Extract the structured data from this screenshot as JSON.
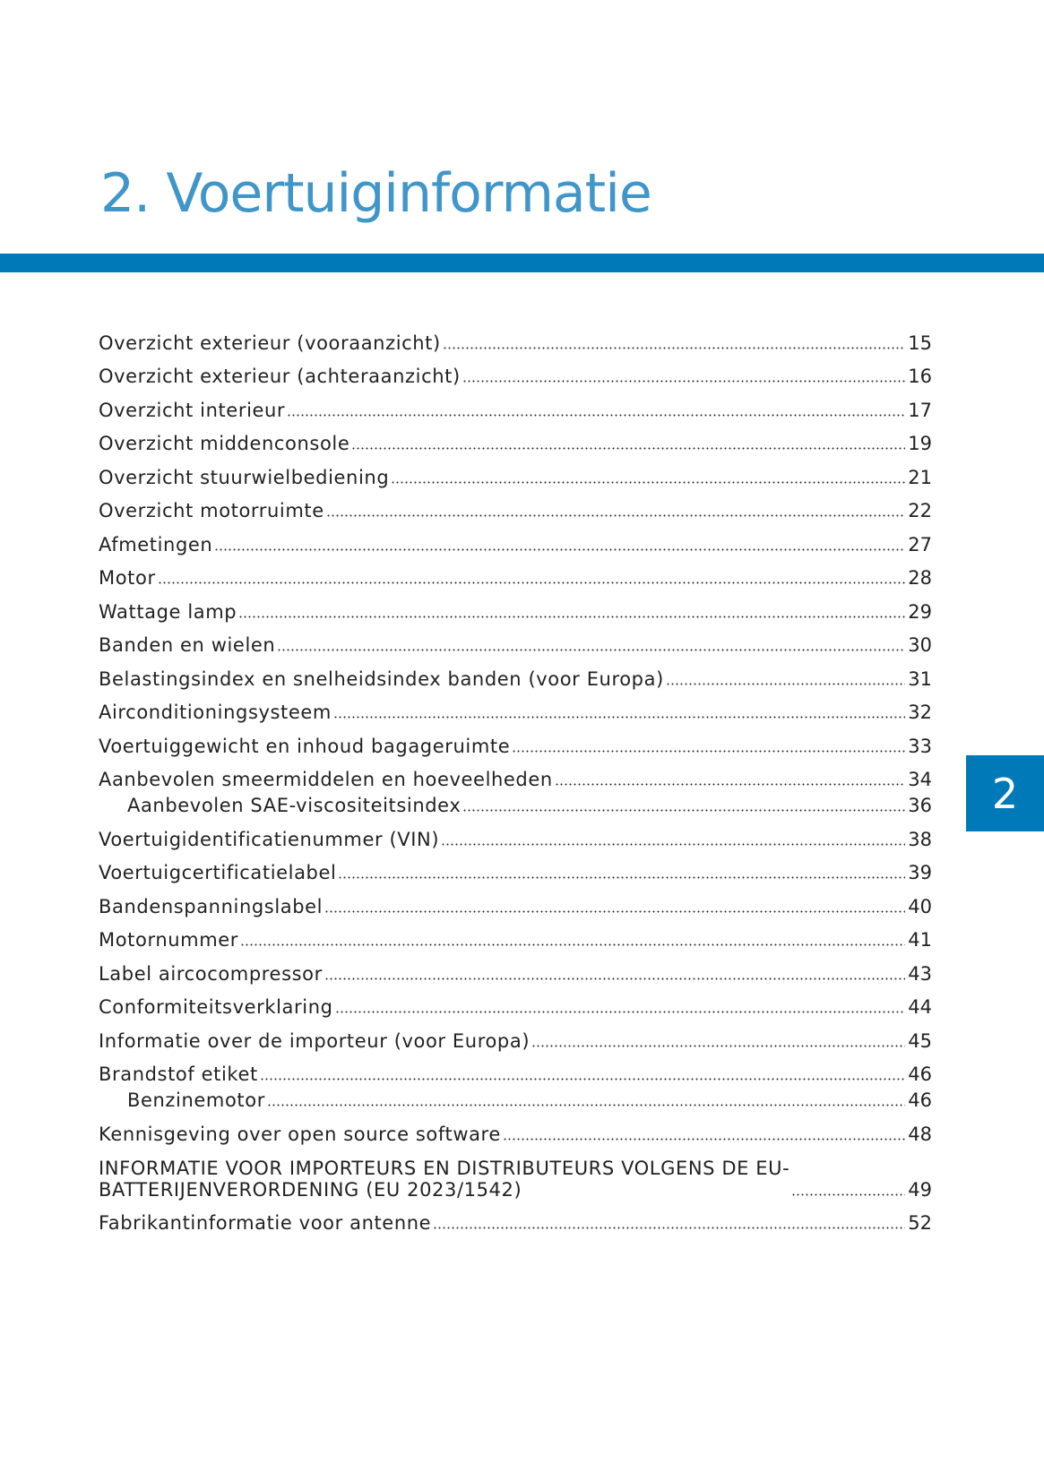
{
  "title": "2. Voertuiginformatie",
  "chapter_tab": "2",
  "colors": {
    "title": "#4196c9",
    "accent": "#0079b8"
  },
  "toc": [
    {
      "title": "Overzicht exterieur (vooraanzicht)",
      "page": "15"
    },
    {
      "title": "Overzicht exterieur (achteraanzicht)",
      "page": "16"
    },
    {
      "title": "Overzicht interieur",
      "page": "17"
    },
    {
      "title": "Overzicht middenconsole",
      "page": "19"
    },
    {
      "title": "Overzicht stuurwielbediening",
      "page": "21"
    },
    {
      "title": "Overzicht motorruimte",
      "page": "22"
    },
    {
      "title": "Afmetingen",
      "page": "27"
    },
    {
      "title": "Motor",
      "page": "28"
    },
    {
      "title": "Wattage lamp",
      "page": "29"
    },
    {
      "title": "Banden en wielen",
      "page": "30"
    },
    {
      "title": "Belastingsindex en snelheidsindex banden (voor Europa)",
      "page": "31"
    },
    {
      "title": "Airconditioningsysteem",
      "page": "32"
    },
    {
      "title": "Voertuiggewicht en inhoud bagageruimte",
      "page": "33"
    },
    {
      "title": "Aanbevolen smeermiddelen en hoeveelheden",
      "page": "34"
    },
    {
      "title": "Aanbevolen SAE-viscositeitsindex",
      "page": "36",
      "sub": true
    },
    {
      "title": "Voertuigidentificatienummer (VIN)",
      "page": "38"
    },
    {
      "title": "Voertuigcertificatielabel",
      "page": "39"
    },
    {
      "title": "Bandenspanningslabel",
      "page": "40"
    },
    {
      "title": "Motornummer",
      "page": "41"
    },
    {
      "title": "Label aircocompressor",
      "page": "43"
    },
    {
      "title": "Conformiteitsverklaring",
      "page": "44"
    },
    {
      "title": "Informatie over de importeur (voor Europa)",
      "page": "45"
    },
    {
      "title": "Brandstof etiket",
      "page": "46"
    },
    {
      "title": "Benzinemotor",
      "page": "46",
      "sub": true
    },
    {
      "title": "Kennisgeving over open source software",
      "page": "48"
    },
    {
      "title": "INFORMATIE VOOR IMPORTEURS EN DISTRIBUTEURS VOLGENS DE EU-\nBATTERIJENVERORDENING (EU 2023/1542)",
      "page": "49",
      "two": true
    },
    {
      "title": "Fabrikantinformatie voor antenne",
      "page": "52"
    }
  ]
}
